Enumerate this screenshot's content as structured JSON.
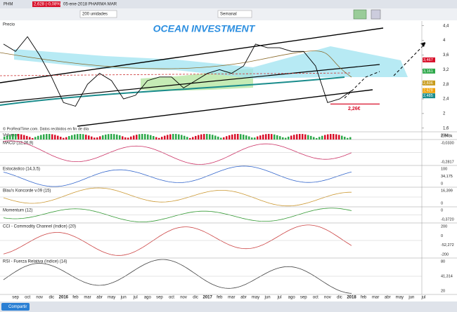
{
  "toolbar": {
    "symbol": "PHM",
    "quote": "2,628 (-0,08%)",
    "name": "05-ene-2018 PHARMA MAR",
    "units": "200 unidades",
    "period": "Semanal"
  },
  "chart_data": {
    "type": "line",
    "title": "OCEAN INVESTMENT",
    "panel_label": "Precio",
    "categories": [
      null,
      "sep",
      "oct",
      "nov",
      "dic",
      "2016",
      "feb",
      "mar",
      "abr",
      "may",
      "jun",
      "jul",
      "ago",
      "sep",
      "oct",
      "nov",
      "dic",
      "2017",
      "feb",
      "mar",
      "abr",
      "may",
      "jun",
      "jul",
      "ago",
      "sep",
      "oct",
      "nov",
      "dic",
      "2018",
      "feb",
      "mar",
      "abr",
      "may",
      "jun",
      "jul"
    ],
    "values": [
      3.9,
      3.7,
      4.1,
      3.6,
      3.0,
      2.3,
      2.2,
      2.8,
      3.1,
      2.9,
      2.4,
      2.5,
      2.9,
      3.0,
      3.0,
      2.7,
      2.9,
      3.1,
      3.2,
      3.1,
      3.3,
      3.9,
      3.8,
      3.8,
      3.7,
      3.7,
      3.3,
      2.3,
      2.4,
      2.628,
      null,
      null,
      null,
      null,
      null,
      null
    ],
    "color": "#000000",
    "ylim": [
      1.5,
      4.53
    ],
    "yticks": [
      {
        "value": 4.4,
        "label": "4,4"
      },
      4,
      {
        "value": 3.6,
        "label": "3,6"
      },
      {
        "value": 3.2,
        "label": "3,2"
      },
      {
        "value": 2.8,
        "label": "2,8"
      },
      {
        "value": 2.4,
        "label": "2,4"
      },
      2,
      {
        "value": 1.6,
        "label": "1,6"
      }
    ],
    "support": {
      "value": 2.26,
      "label": "2,26€"
    },
    "price_tags": [
      {
        "value": 3.467,
        "label": "3,467"
      },
      {
        "value": 3.161,
        "label": "3,161"
      },
      {
        "value": 2.836,
        "label": "2,836"
      },
      {
        "value": 2.628,
        "label": "2,628"
      },
      {
        "value": 2.485,
        "label": "2,485"
      }
    ],
    "source": "© ProRealTime.com. Datos recibidos en fin de día"
  },
  "panels": [
    {
      "label": "Volumen",
      "axis_labels": [
        "20M",
        "2,948k"
      ]
    },
    {
      "label": "MACD (12,26,9)",
      "axis_labels": [
        "-0,0330",
        "-0,2817"
      ]
    },
    {
      "label": "Estocástico (14,3,5)",
      "axis_labels": [
        "100",
        "34,175",
        "0"
      ]
    },
    {
      "label": "Blau's Koncorde v.09 (15)",
      "axis_labels": [
        "16,399",
        "0"
      ]
    },
    {
      "label": "Momentum (12)",
      "axis_labels": [
        "0",
        "-0,3720"
      ]
    },
    {
      "label": "CCI - Commodity Channel (índice) (20)",
      "axis_labels": [
        "200",
        "0",
        "-52,272",
        "-200"
      ]
    },
    {
      "label": "RSI - Fuerza Relativa (índice) (14)",
      "axis_labels": [
        "80",
        "41,314",
        "20"
      ]
    }
  ],
  "footer": {
    "button": "Compartir"
  }
}
